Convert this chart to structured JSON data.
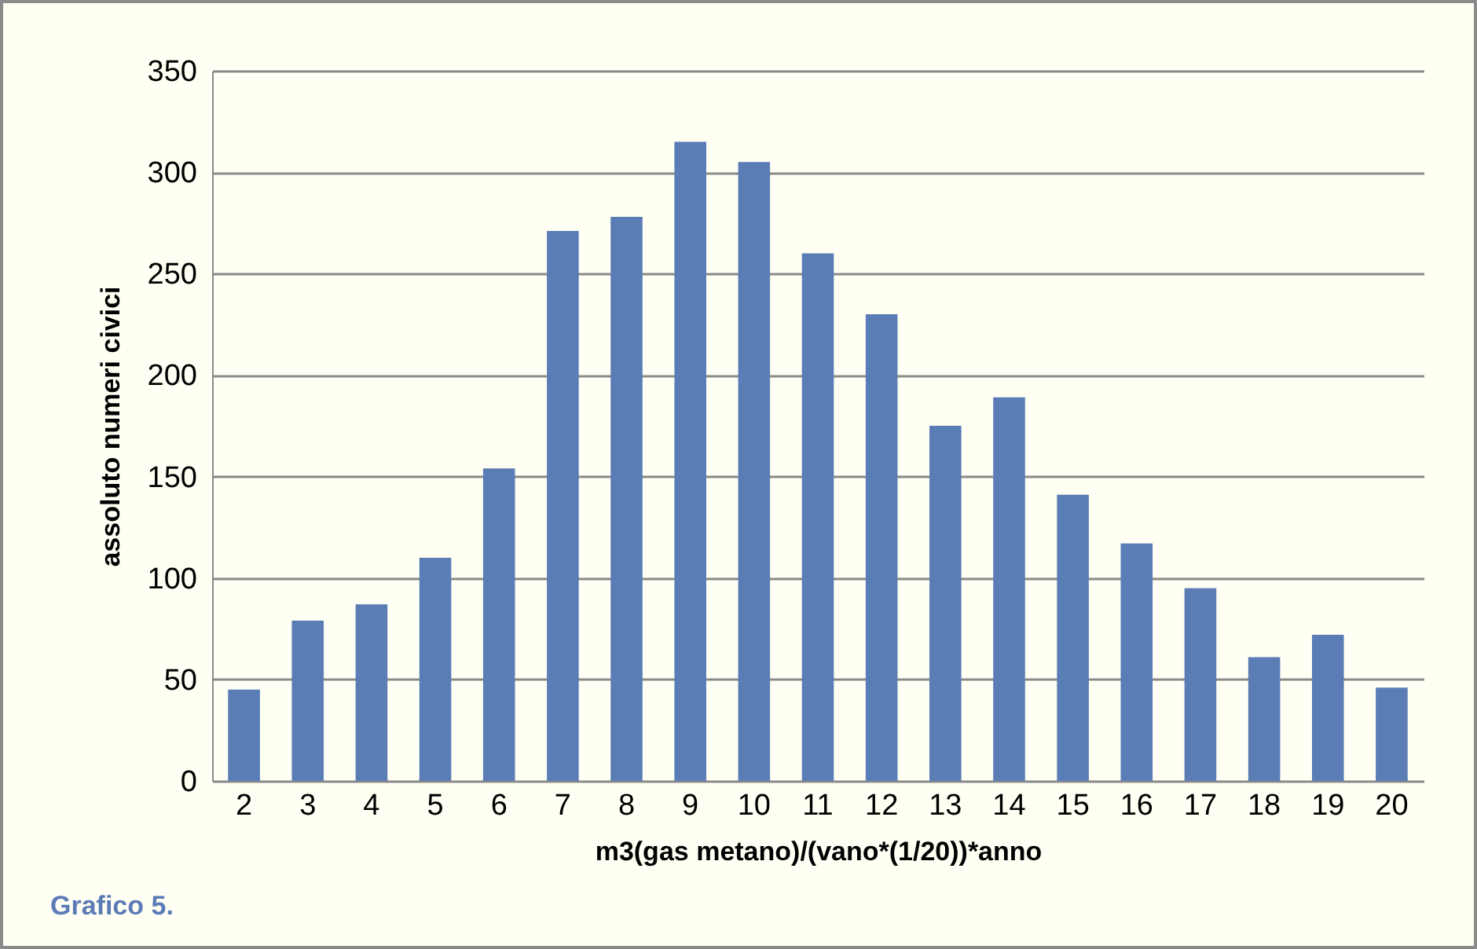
{
  "chart_data": {
    "type": "bar",
    "xlabel": "m3(gas metano)/(vano*(1/20))*anno",
    "ylabel": "assoluto numeri civici",
    "annotations": [
      "Grafico 5."
    ],
    "categories": [
      "2",
      "3",
      "4",
      "5",
      "6",
      "7",
      "8",
      "9",
      "10",
      "11",
      "12",
      "13",
      "14",
      "15",
      "16",
      "17",
      "18",
      "19",
      "20"
    ],
    "values": [
      45,
      79,
      87,
      110,
      154,
      271,
      278,
      315,
      305,
      260,
      230,
      175,
      189,
      141,
      117,
      95,
      61,
      72,
      46
    ],
    "color": "#5a7db6",
    "ylim": [
      0,
      350
    ],
    "yticks": [
      0,
      50,
      100,
      150,
      200,
      250,
      300,
      350
    ],
    "grid": "y"
  }
}
